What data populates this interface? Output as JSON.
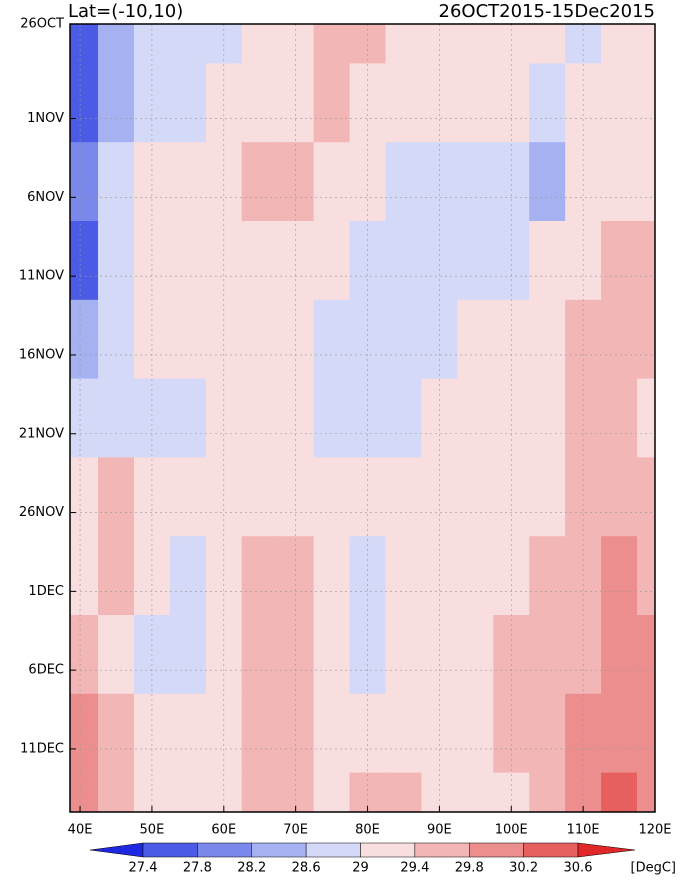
{
  "chart_data": {
    "type": "heatmap",
    "title_left": "Lat=(-10,10)",
    "title_right": "26OCT2015-15Dec2015",
    "x": [
      40,
      45,
      50,
      55,
      60,
      65,
      70,
      75,
      80,
      85,
      90,
      95,
      100,
      105,
      110,
      115,
      120
    ],
    "y": [
      0,
      5,
      10,
      15,
      20,
      25,
      30,
      35,
      40,
      45,
      50
    ],
    "z": [
      [
        27.6,
        28.4,
        28.8,
        28.8,
        28.8,
        29.0,
        29.2,
        29.6,
        29.4,
        29.2,
        29.2,
        29.2,
        29.0,
        29.0,
        28.8,
        29.2,
        29.2
      ],
      [
        27.6,
        28.4,
        28.8,
        28.8,
        29.0,
        29.2,
        29.2,
        29.6,
        29.2,
        29.0,
        29.0,
        29.0,
        29.0,
        28.6,
        29.0,
        29.2,
        29.0
      ],
      [
        27.8,
        28.6,
        29.0,
        29.2,
        29.2,
        29.4,
        29.4,
        29.2,
        29.2,
        28.8,
        28.8,
        28.8,
        28.8,
        28.4,
        29.2,
        29.2,
        29.0
      ],
      [
        27.6,
        28.6,
        29.0,
        29.2,
        29.2,
        29.2,
        29.0,
        29.0,
        28.8,
        28.8,
        28.8,
        28.6,
        28.6,
        29.0,
        29.2,
        29.4,
        29.4
      ],
      [
        28.2,
        28.8,
        29.0,
        29.2,
        29.0,
        29.2,
        29.0,
        28.8,
        28.6,
        28.6,
        28.8,
        29.0,
        29.0,
        29.2,
        29.4,
        29.6,
        29.4
      ],
      [
        28.6,
        28.8,
        28.8,
        28.8,
        29.0,
        29.0,
        29.0,
        28.8,
        28.6,
        28.8,
        29.0,
        29.0,
        29.0,
        29.2,
        29.4,
        29.4,
        29.2
      ],
      [
        29.0,
        29.6,
        29.2,
        29.0,
        29.0,
        29.2,
        29.2,
        29.0,
        29.2,
        29.0,
        29.0,
        29.0,
        29.2,
        29.2,
        29.4,
        29.6,
        29.6
      ],
      [
        29.2,
        29.4,
        29.0,
        28.8,
        29.2,
        29.4,
        29.4,
        29.2,
        28.8,
        29.0,
        29.0,
        29.2,
        29.2,
        29.4,
        29.6,
        29.8,
        29.6
      ],
      [
        29.4,
        29.2,
        28.8,
        28.6,
        29.0,
        29.4,
        29.6,
        29.2,
        28.8,
        29.0,
        29.2,
        29.2,
        29.4,
        29.4,
        29.6,
        30.0,
        29.8
      ],
      [
        29.8,
        29.4,
        29.0,
        29.0,
        29.2,
        29.4,
        29.4,
        29.2,
        29.0,
        29.2,
        29.2,
        29.2,
        29.4,
        29.6,
        29.8,
        30.0,
        30.0
      ],
      [
        29.8,
        29.6,
        29.0,
        29.0,
        29.2,
        29.4,
        29.4,
        29.2,
        29.4,
        29.6,
        29.2,
        29.0,
        29.2,
        29.6,
        29.8,
        30.2,
        30.0
      ]
    ],
    "xlim": [
      38.6,
      120
    ],
    "ylim": [
      0,
      50
    ],
    "xticks": [
      {
        "value": 40,
        "label": "40E"
      },
      {
        "value": 50,
        "label": "50E"
      },
      {
        "value": 60,
        "label": "60E"
      },
      {
        "value": 70,
        "label": "70E"
      },
      {
        "value": 80,
        "label": "80E"
      },
      {
        "value": 90,
        "label": "90E"
      },
      {
        "value": 100,
        "label": "100E"
      },
      {
        "value": 110,
        "label": "110E"
      },
      {
        "value": 120,
        "label": "120E"
      }
    ],
    "yticks": [
      {
        "value": 0,
        "label": "26OCT"
      },
      {
        "value": 6,
        "label": "1NOV"
      },
      {
        "value": 11,
        "label": "6NOV"
      },
      {
        "value": 16,
        "label": "11NOV"
      },
      {
        "value": 21,
        "label": "16NOV"
      },
      {
        "value": 26,
        "label": "21NOV"
      },
      {
        "value": 31,
        "label": "26NOV"
      },
      {
        "value": 36,
        "label": "1DEC"
      },
      {
        "value": 41,
        "label": "6DEC"
      },
      {
        "value": 46,
        "label": "11DEC"
      }
    ],
    "grid": true,
    "levels": [
      27.4,
      27.8,
      28.2,
      28.6,
      29,
      29.4,
      29.8,
      30.2,
      30.6
    ],
    "level_colors": [
      "#1e28e0",
      "#4b5be6",
      "#7a88ec",
      "#a6b1f2",
      "#d4d9f8",
      "#f8dede",
      "#f2b6b6",
      "#ec8e8e",
      "#e66060",
      "#e02828"
    ],
    "colorbar_unit": "[DegC]"
  }
}
